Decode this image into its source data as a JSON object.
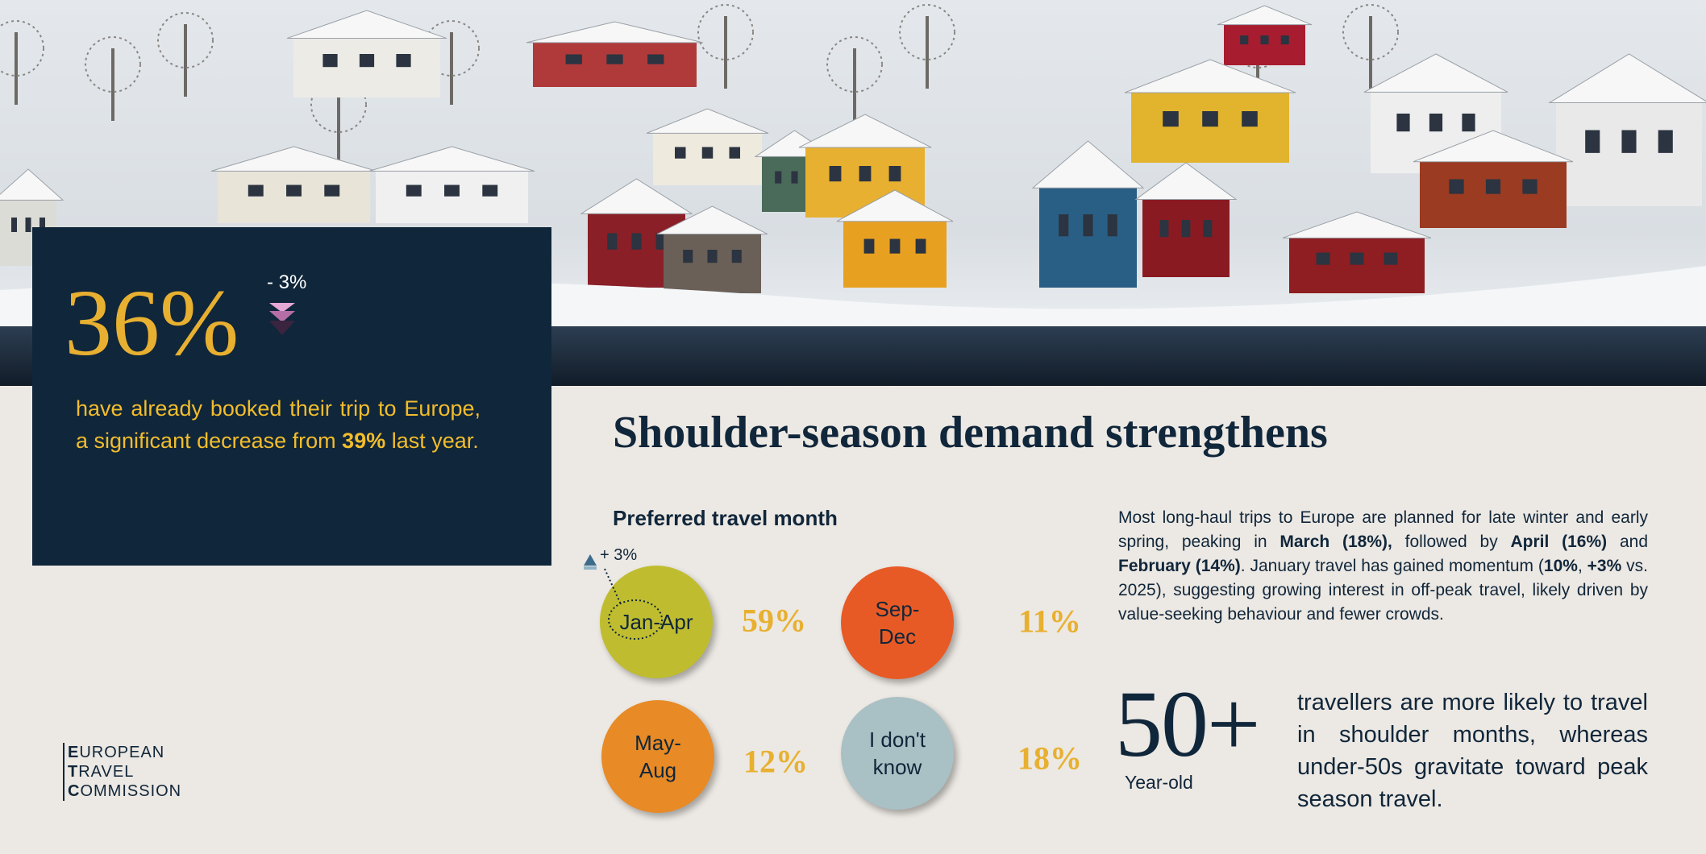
{
  "hero": {
    "stat": "36%",
    "change": "- 3%",
    "text": [
      {
        "text": "have already booked their trip to Europe, a significant decrease from ",
        "bold": false
      },
      {
        "text": "39%",
        "bold": true
      },
      {
        "text": " last year.",
        "bold": false
      }
    ]
  },
  "title": "Shoulder-season demand strengthens",
  "months": {
    "heading": "Preferred travel month",
    "annotation": "+ 3%",
    "items": [
      {
        "label": "Jan-Apr",
        "value": "59%",
        "color": "#bfbd2f"
      },
      {
        "label": "Sep-Dec",
        "value": "11%",
        "color": "#e85a25"
      },
      {
        "label": "May-Aug",
        "value": "12%",
        "color": "#e88a25"
      },
      {
        "label": "I don't know",
        "value": "18%",
        "color": "#a9c0c4"
      }
    ]
  },
  "details": {
    "text": [
      {
        "text": "Most long-haul trips to Europe are planned for late winter and early spring, peaking in ",
        "bold": false
      },
      {
        "text": "March (18%),",
        "bold": true
      },
      {
        "text": " followed by ",
        "bold": false
      },
      {
        "text": "April (16%)",
        "bold": true
      },
      {
        "text": " and ",
        "bold": false
      },
      {
        "text": "February (14%)",
        "bold": true
      },
      {
        "text": ". January travel has gained momentum (",
        "bold": false
      },
      {
        "text": "10%",
        "bold": true
      },
      {
        "text": ", ",
        "bold": false
      },
      {
        "text": "+3%",
        "bold": true
      },
      {
        "text": " vs. 2025), suggesting growing interest in off-peak travel, likely driven by value-seeking behaviour and fewer crowds.",
        "bold": false
      }
    ]
  },
  "age": {
    "stat": "50+",
    "caption": "Year-old",
    "text": "travellers are more likely to travel in shoulder months, whereas under-50s gravitate toward peak season travel."
  },
  "logo": {
    "lines": [
      "EUROPEAN",
      "TRAVEL",
      "COMMISSION"
    ]
  }
}
